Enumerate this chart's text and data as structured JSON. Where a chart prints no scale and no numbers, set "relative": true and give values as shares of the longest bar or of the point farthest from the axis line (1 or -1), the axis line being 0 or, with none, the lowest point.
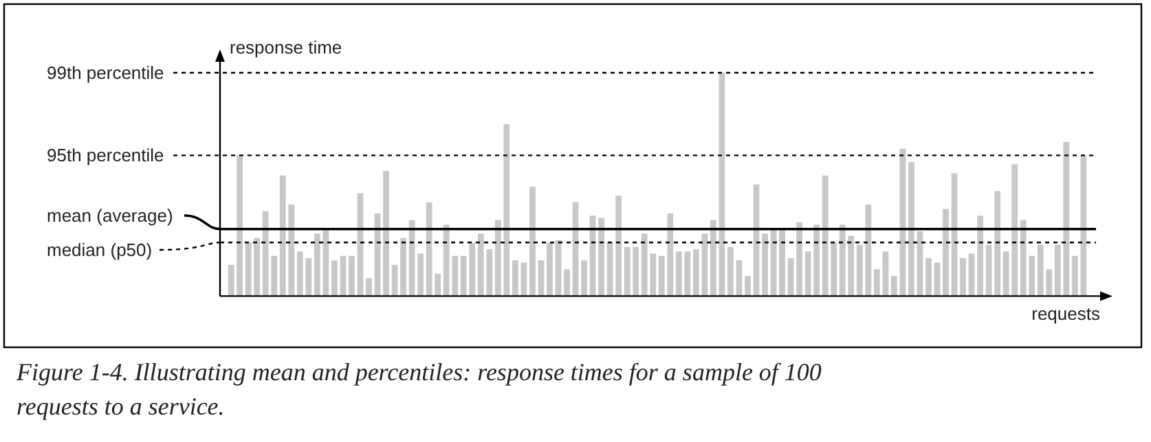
{
  "chart_data": {
    "type": "bar",
    "relative": true,
    "xlabel": "requests",
    "ylabel": "response time",
    "categories": [
      null,
      null,
      null,
      null,
      null,
      null,
      null,
      null,
      null,
      null,
      null,
      null,
      null,
      null,
      null,
      null,
      null,
      null,
      null,
      null,
      null,
      null,
      null,
      null,
      null,
      null,
      null,
      null,
      null,
      null,
      null,
      null,
      null,
      null,
      null,
      null,
      null,
      null,
      null,
      null,
      null,
      null,
      null,
      null,
      null,
      null,
      null,
      null,
      null,
      null,
      null,
      null,
      null,
      null,
      null,
      null,
      null,
      null,
      null,
      null,
      null,
      null,
      null,
      null,
      null,
      null,
      null,
      null,
      null,
      null,
      null,
      null,
      null,
      null,
      null,
      null,
      null,
      null,
      null,
      null,
      null,
      null,
      null,
      null,
      null,
      null,
      null,
      null,
      null,
      null,
      null,
      null,
      null,
      null,
      null,
      null,
      null,
      null,
      null,
      null
    ],
    "color": "#c8c8c8",
    "values": [
      0.14,
      0.63,
      0.24,
      0.26,
      0.38,
      0.18,
      0.54,
      0.41,
      0.2,
      0.17,
      0.28,
      0.3,
      0.16,
      0.18,
      0.18,
      0.46,
      0.08,
      0.37,
      0.56,
      0.14,
      0.26,
      0.34,
      0.19,
      0.42,
      0.1,
      0.32,
      0.18,
      0.18,
      0.24,
      0.28,
      0.21,
      0.34,
      0.77,
      0.16,
      0.15,
      0.49,
      0.16,
      0.24,
      0.25,
      0.12,
      0.42,
      0.16,
      0.36,
      0.35,
      0.24,
      0.45,
      0.22,
      0.22,
      0.28,
      0.19,
      0.18,
      0.37,
      0.2,
      0.2,
      0.21,
      0.28,
      0.34,
      1.0,
      0.22,
      0.16,
      0.09,
      0.5,
      0.28,
      0.3,
      0.3,
      0.17,
      0.33,
      0.2,
      0.32,
      0.54,
      0.24,
      0.32,
      0.27,
      0.23,
      0.41,
      0.12,
      0.2,
      0.09,
      0.66,
      0.6,
      0.29,
      0.17,
      0.15,
      0.39,
      0.55,
      0.17,
      0.19,
      0.36,
      0.23,
      0.47,
      0.2,
      0.59,
      0.34,
      0.18,
      0.23,
      0.12,
      0.23,
      0.69,
      0.18,
      0.63
    ],
    "ref_lines": [
      {
        "axis": "y",
        "value": 1.0,
        "label": "99th percentile",
        "color": "#000000",
        "line_style": "dashed"
      },
      {
        "axis": "y",
        "value": 0.63,
        "label": "95th percentile",
        "color": "#000000",
        "line_style": "dashed"
      },
      {
        "axis": "y",
        "value": 0.3,
        "label": "mean (average)",
        "color": "#000000",
        "line_style": "solid"
      },
      {
        "axis": "y",
        "value": 0.24,
        "label": "median (p50)",
        "color": "#000000",
        "line_style": "dashed"
      }
    ],
    "annotations": [
      "Figure 1-4. Illustrating mean and percentiles: response times for a sample of 100 requests to a service."
    ]
  }
}
